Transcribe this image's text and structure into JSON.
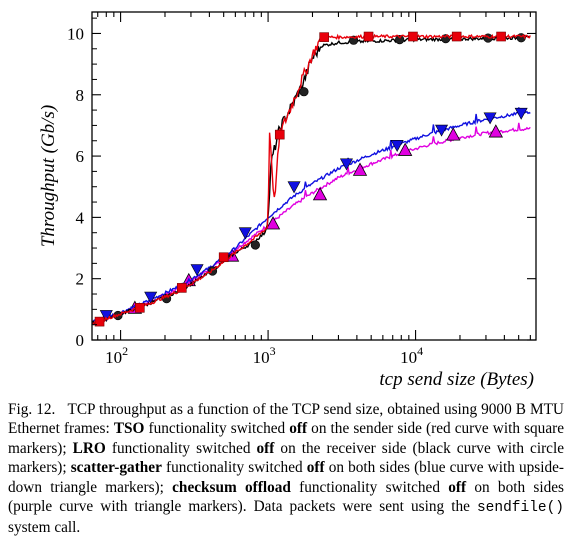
{
  "chart_data": {
    "type": "line",
    "xlabel": "tcp send size (Bytes)",
    "ylabel": "Throughput (Gb/s)",
    "xscale": "log",
    "xlim": [
      64,
      65536
    ],
    "ylim": [
      0,
      10.7
    ],
    "y_ticks": [
      "0",
      "2",
      "4",
      "6",
      "8",
      "10"
    ],
    "x_ticks": [
      {
        "base": "10",
        "exp": "2"
      },
      {
        "base": "10",
        "exp": "3"
      },
      {
        "base": "10",
        "exp": "4"
      }
    ],
    "grid": false,
    "series": [
      {
        "id": "tso_off",
        "color": "#e8000b",
        "marker": "square",
        "x": [
          64,
          100,
          150,
          250,
          400,
          600,
          800,
          950,
          1000,
          1020,
          1100,
          1200,
          1400,
          1700,
          2000,
          2300,
          3000,
          5000,
          10000,
          20000,
          40000,
          60000
        ],
        "y": [
          0.55,
          0.85,
          1.15,
          1.6,
          2.2,
          2.85,
          3.3,
          3.6,
          3.7,
          7.0,
          4.5,
          6.7,
          7.5,
          8.5,
          9.3,
          9.88,
          9.88,
          9.9,
          9.9,
          9.9,
          9.9,
          9.9
        ],
        "markers_x": [
          72,
          135,
          260,
          500,
          1200,
          2400,
          4800,
          9600,
          19000,
          38000
        ],
        "markers_y": [
          0.6,
          1.05,
          1.7,
          2.7,
          6.7,
          9.88,
          9.9,
          9.9,
          9.9,
          9.9
        ]
      },
      {
        "id": "lro_off",
        "color": "#000000",
        "marker": "circle",
        "x": [
          64,
          100,
          150,
          250,
          400,
          600,
          800,
          950,
          1000,
          1050,
          1200,
          1400,
          1700,
          2000,
          2300,
          3000,
          5000,
          10000,
          20000,
          40000,
          60000
        ],
        "y": [
          0.55,
          0.85,
          1.15,
          1.6,
          2.2,
          2.85,
          3.2,
          3.5,
          3.9,
          5.8,
          6.9,
          7.5,
          8.3,
          9.2,
          9.6,
          9.7,
          9.75,
          9.8,
          9.82,
          9.85,
          9.86
        ],
        "markers_x": [
          96,
          205,
          420,
          820,
          1750,
          3800,
          7800,
          16000,
          31000,
          52000
        ],
        "markers_y": [
          0.8,
          1.35,
          2.25,
          3.1,
          8.1,
          9.78,
          9.8,
          9.83,
          9.85,
          9.86
        ]
      },
      {
        "id": "scatter_gather_off",
        "color": "#1010e0",
        "marker": "triangle-down",
        "x": [
          64,
          100,
          150,
          250,
          400,
          600,
          1000,
          1500,
          2000,
          3000,
          5000,
          8000,
          12000,
          20000,
          30000,
          45000,
          60000
        ],
        "y": [
          0.6,
          0.9,
          1.25,
          1.75,
          2.35,
          3.0,
          4.0,
          4.7,
          5.1,
          5.6,
          6.05,
          6.4,
          6.7,
          7.0,
          7.2,
          7.35,
          7.42
        ],
        "markers_x": [
          80,
          160,
          330,
          700,
          1500,
          3400,
          7500,
          15000,
          32000,
          52000
        ],
        "markers_y": [
          0.8,
          1.4,
          2.3,
          3.5,
          5.0,
          5.75,
          6.35,
          6.85,
          7.25,
          7.4
        ]
      },
      {
        "id": "checksum_off",
        "color": "#e000e0",
        "marker": "triangle-up",
        "x": [
          64,
          100,
          150,
          250,
          400,
          600,
          1000,
          1500,
          2000,
          3000,
          5000,
          8000,
          12000,
          20000,
          30000,
          45000,
          60000
        ],
        "y": [
          0.55,
          0.85,
          1.2,
          1.7,
          2.3,
          2.95,
          3.75,
          4.4,
          4.8,
          5.3,
          5.75,
          6.1,
          6.35,
          6.6,
          6.75,
          6.85,
          6.9
        ],
        "markers_x": [
          125,
          290,
          570,
          1080,
          2250,
          4200,
          8500,
          18000,
          35000
        ],
        "markers_y": [
          1.05,
          1.95,
          2.75,
          3.8,
          4.75,
          5.55,
          6.2,
          6.7,
          6.8
        ]
      }
    ]
  },
  "caption": {
    "fig_label": "Fig. 12.",
    "intro": "TCP throughput as a function of the TCP send size, obtained using 9000 B MTU Ethernet frames: ",
    "tso": "TSO",
    "t1": " functionality switched ",
    "off1": "off",
    "t2": " on the sender side (red curve with square markers); ",
    "lro": "LRO",
    "t3": " functionality switched ",
    "off2": "off",
    "t4": " on the receiver side (black curve with circle markers); ",
    "sg": "scatter-gather",
    "t5": " functionality switched ",
    "off3": "off",
    "t6": " on both sides (blue curve with upside-down triangle markers); ",
    "cso": "checksum offload",
    "t7": " functionality switched ",
    "off4": "off",
    "t8": " on both sides (purple curve with triangle markers). Data packets were sent using the ",
    "code": "sendfile()",
    "t9": " system call."
  }
}
